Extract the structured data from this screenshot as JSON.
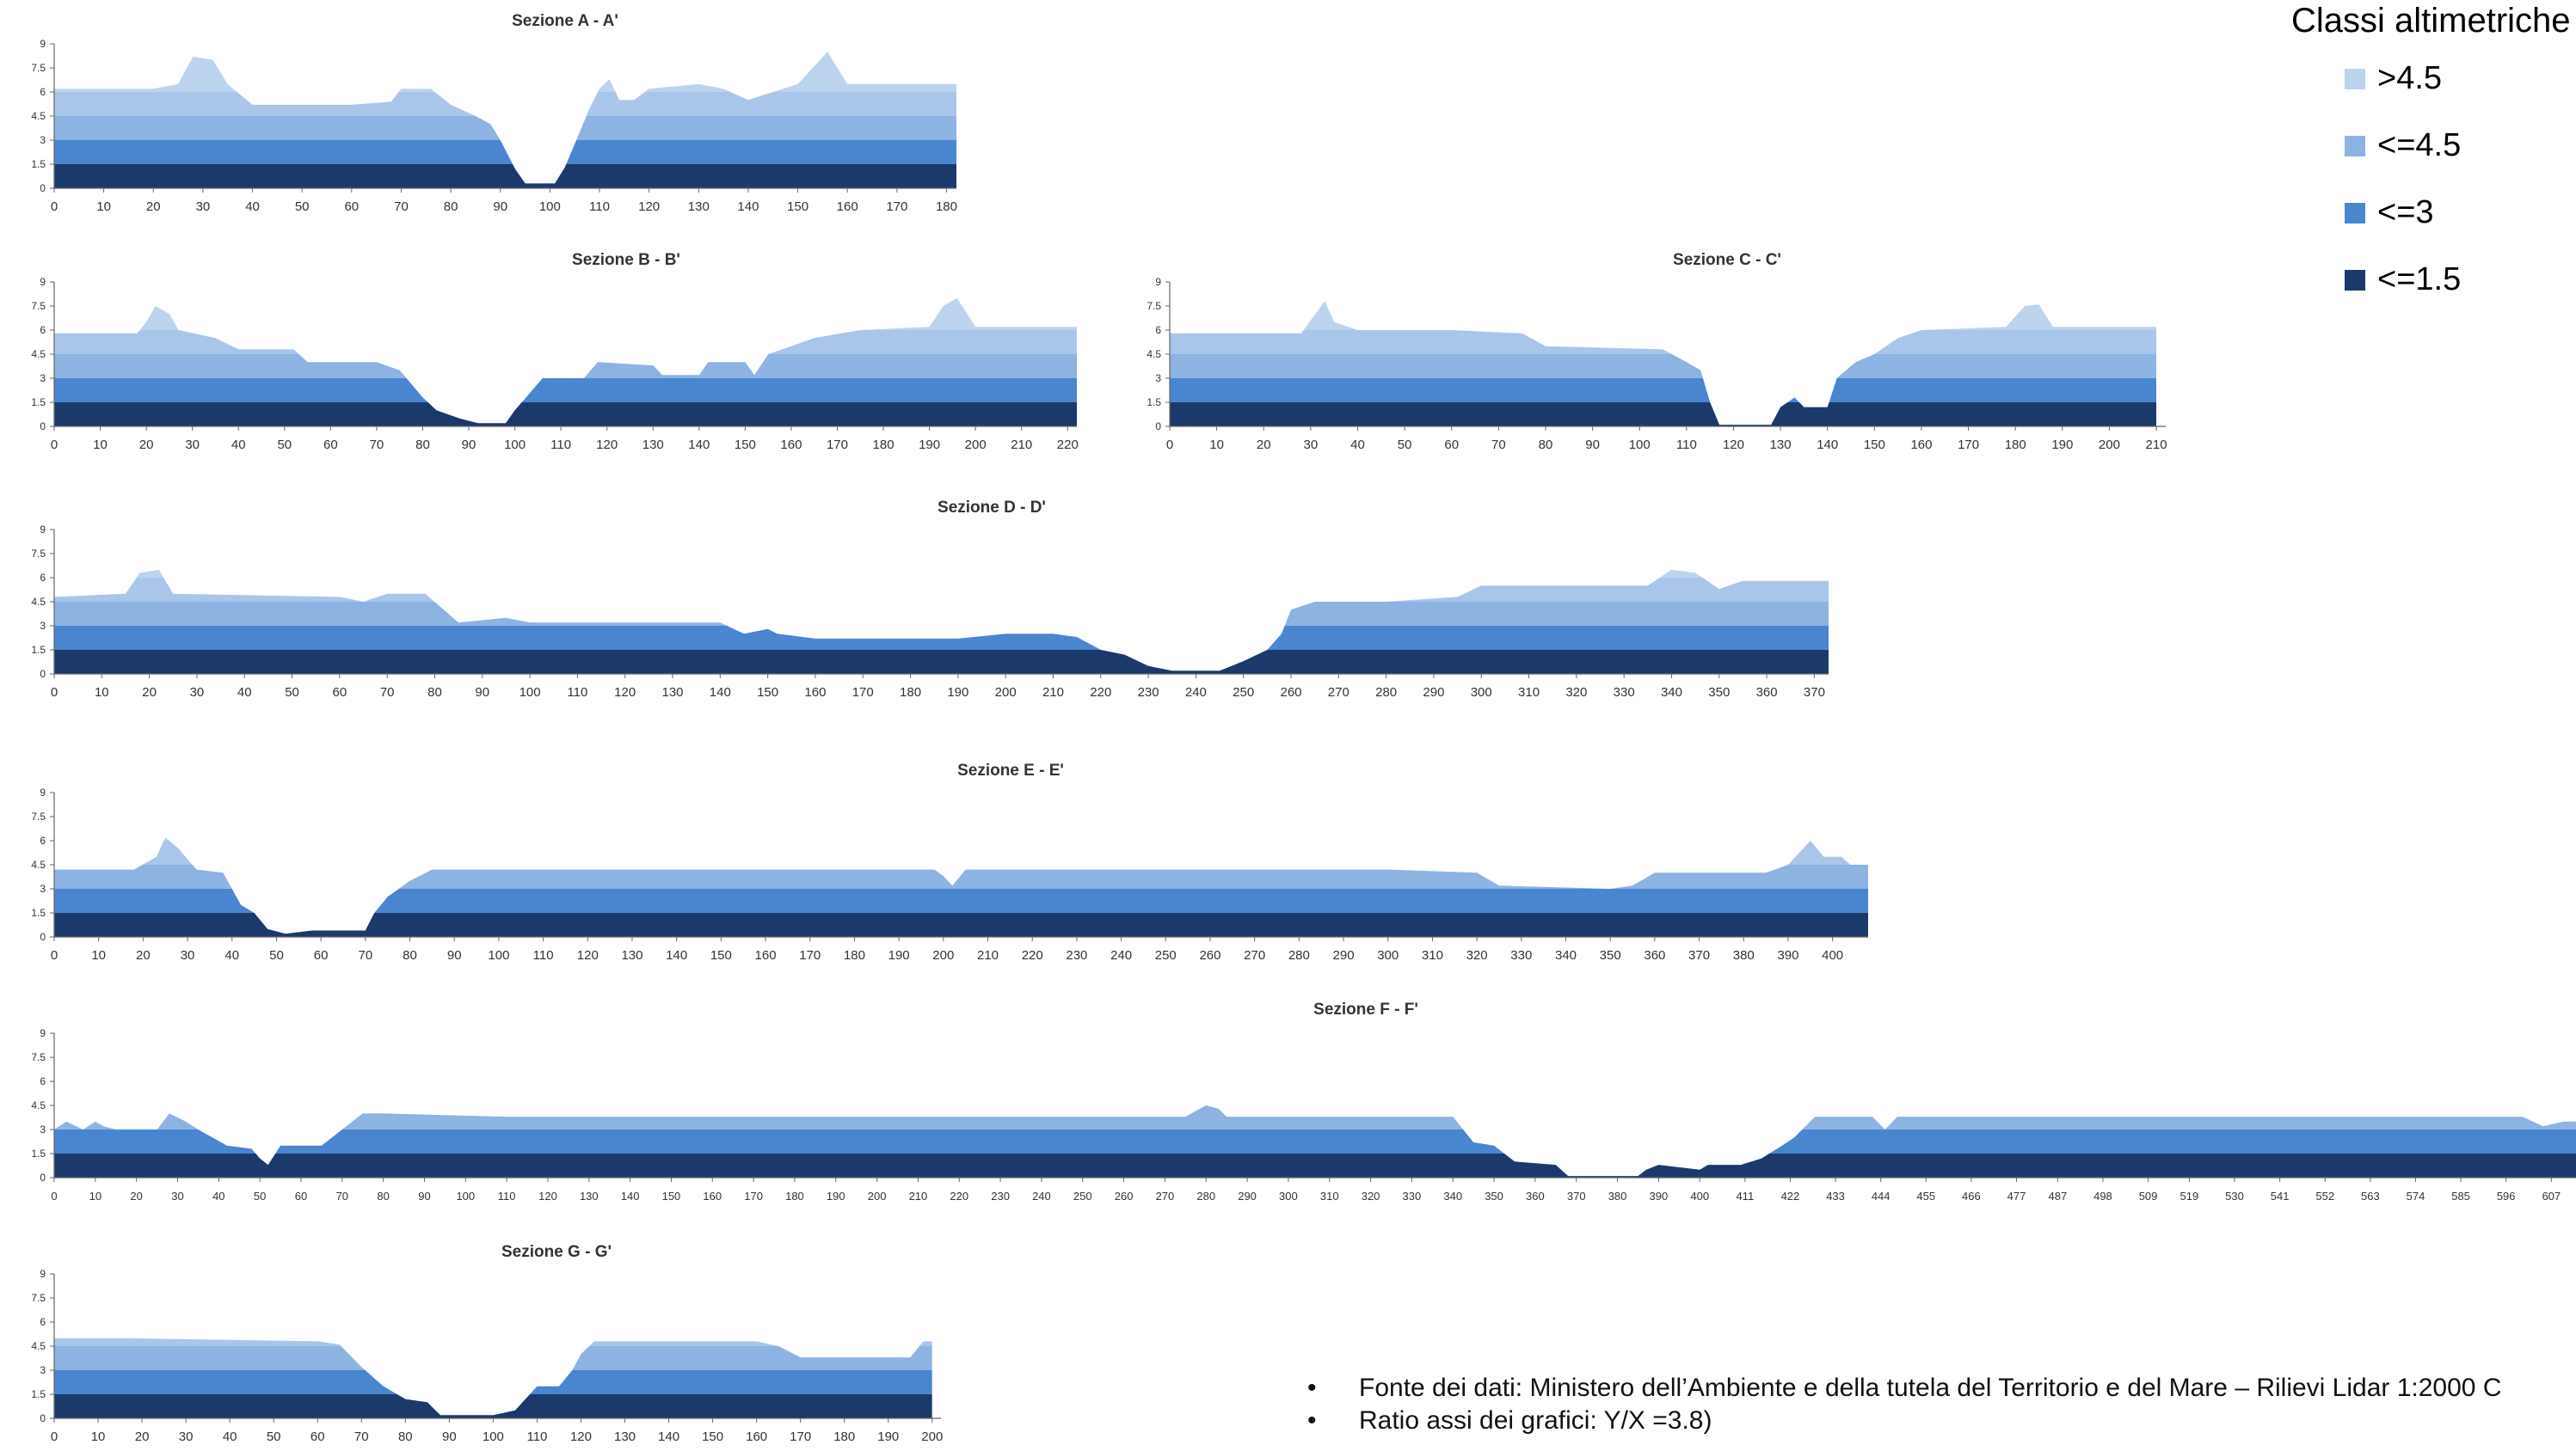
{
  "legend": {
    "title": "Classi altimetriche",
    "items": [
      {
        "label": ">4.5",
        "color": "#bcd3ee"
      },
      {
        "label": "<=4.5",
        "color": "#8db3e2"
      },
      {
        "label": "<=3",
        "color": "#4a86cf"
      },
      {
        "label": "<=1.5",
        "color": "#1b3a6b"
      }
    ]
  },
  "notes": [
    "Fonte dei dati: Ministero dell’Ambiente e della tutela  del Territorio e del Mare – Rilievi Lidar 1:2000 C",
    "Ratio assi dei grafici: Y/X  =3.8)"
  ],
  "chart_data": [
    {
      "type": "area",
      "title": "Sezione A - A'",
      "yticks": [
        "0",
        "1.5",
        "3",
        "4.5",
        "6",
        "7.5",
        "9"
      ],
      "ylim": [
        0,
        9
      ],
      "xlim": [
        0,
        182
      ],
      "xticks": [
        0,
        10,
        20,
        30,
        40,
        50,
        60,
        70,
        80,
        90,
        100,
        110,
        120,
        130,
        140,
        150,
        160,
        170,
        180
      ],
      "profile": [
        [
          0,
          6.2
        ],
        [
          20,
          6.2
        ],
        [
          25,
          6.5
        ],
        [
          28,
          8.2
        ],
        [
          32,
          8
        ],
        [
          35,
          6.5
        ],
        [
          40,
          5.2
        ],
        [
          50,
          5.2
        ],
        [
          60,
          5.2
        ],
        [
          68,
          5.4
        ],
        [
          70,
          6.2
        ],
        [
          76,
          6.2
        ],
        [
          80,
          5.2
        ],
        [
          85,
          4.5
        ],
        [
          88,
          4
        ],
        [
          90,
          3
        ],
        [
          93,
          1.2
        ],
        [
          95,
          0.3
        ],
        [
          101,
          0.3
        ],
        [
          103,
          1.3
        ],
        [
          106,
          3.5
        ],
        [
          108,
          5
        ],
        [
          110,
          6.2
        ],
        [
          112,
          6.8
        ],
        [
          114,
          5.5
        ],
        [
          117,
          5.5
        ],
        [
          120,
          6.2
        ],
        [
          130,
          6.5
        ],
        [
          135,
          6.2
        ],
        [
          140,
          5.5
        ],
        [
          145,
          6
        ],
        [
          150,
          6.5
        ],
        [
          153,
          7.5
        ],
        [
          156,
          8.5
        ],
        [
          160,
          6.5
        ],
        [
          165,
          6.5
        ],
        [
          182,
          6.5
        ]
      ]
    },
    {
      "type": "area",
      "title": "Sezione B - B'",
      "yticks": [
        "0",
        "1.5",
        "3",
        "4.5",
        "6",
        "7.5",
        "9"
      ],
      "ylim": [
        0,
        9
      ],
      "xlim": [
        0,
        222
      ],
      "xticks": [
        0,
        10,
        20,
        30,
        40,
        50,
        60,
        70,
        80,
        90,
        100,
        110,
        120,
        130,
        140,
        150,
        160,
        170,
        180,
        190,
        200,
        210,
        220
      ],
      "profile": [
        [
          0,
          5.8
        ],
        [
          18,
          5.8
        ],
        [
          20,
          6.5
        ],
        [
          22,
          7.5
        ],
        [
          25,
          7
        ],
        [
          27,
          6
        ],
        [
          35,
          5.5
        ],
        [
          40,
          4.8
        ],
        [
          52,
          4.8
        ],
        [
          55,
          4
        ],
        [
          70,
          4
        ],
        [
          75,
          3.5
        ],
        [
          80,
          1.8
        ],
        [
          83,
          1
        ],
        [
          88,
          0.5
        ],
        [
          92,
          0.2
        ],
        [
          98,
          0.2
        ],
        [
          100,
          1
        ],
        [
          103,
          2
        ],
        [
          106,
          3
        ],
        [
          115,
          3
        ],
        [
          118,
          4
        ],
        [
          130,
          3.8
        ],
        [
          132,
          3.2
        ],
        [
          140,
          3.2
        ],
        [
          142,
          4
        ],
        [
          150,
          4
        ],
        [
          152,
          3.2
        ],
        [
          155,
          4.5
        ],
        [
          160,
          5
        ],
        [
          165,
          5.5
        ],
        [
          175,
          6
        ],
        [
          190,
          6.2
        ],
        [
          193,
          7.5
        ],
        [
          196,
          8
        ],
        [
          200,
          6.2
        ],
        [
          222,
          6.2
        ]
      ]
    },
    {
      "type": "area",
      "title": "Sezione C - C'",
      "yticks": [
        "0",
        "1.5",
        "3",
        "4.5",
        "6",
        "7.5",
        "9"
      ],
      "ylim": [
        0,
        9
      ],
      "xlim": [
        0,
        212
      ],
      "xticks": [
        0,
        10,
        20,
        30,
        40,
        50,
        60,
        70,
        80,
        90,
        100,
        110,
        120,
        130,
        140,
        150,
        160,
        170,
        180,
        190,
        200,
        210
      ],
      "profile": [
        [
          0,
          5.8
        ],
        [
          28,
          5.8
        ],
        [
          31,
          7
        ],
        [
          33,
          7.8
        ],
        [
          35,
          6.5
        ],
        [
          40,
          6
        ],
        [
          60,
          6
        ],
        [
          75,
          5.8
        ],
        [
          80,
          5
        ],
        [
          105,
          4.8
        ],
        [
          110,
          4
        ],
        [
          113,
          3.5
        ],
        [
          115,
          1.5
        ],
        [
          117,
          0.1
        ],
        [
          128,
          0.1
        ],
        [
          130,
          1.2
        ],
        [
          133,
          1.8
        ],
        [
          135,
          1.2
        ],
        [
          140,
          1.2
        ],
        [
          142,
          3
        ],
        [
          146,
          4
        ],
        [
          150,
          4.5
        ],
        [
          155,
          5.5
        ],
        [
          160,
          6
        ],
        [
          178,
          6.2
        ],
        [
          182,
          7.5
        ],
        [
          185,
          7.6
        ],
        [
          188,
          6.2
        ],
        [
          210,
          6.2
        ]
      ]
    },
    {
      "type": "area",
      "title": "Sezione D - D'",
      "yticks": [
        "0",
        "1.5",
        "3",
        "4.5",
        "6",
        "7.5",
        "9"
      ],
      "ylim": [
        0,
        9
      ],
      "xlim": [
        0,
        373
      ],
      "xticks": [
        0,
        10,
        20,
        30,
        40,
        50,
        60,
        70,
        80,
        90,
        100,
        110,
        120,
        130,
        140,
        150,
        160,
        170,
        180,
        190,
        200,
        210,
        220,
        230,
        240,
        250,
        260,
        270,
        280,
        290,
        300,
        310,
        320,
        330,
        340,
        350,
        360,
        370
      ],
      "profile": [
        [
          0,
          4.8
        ],
        [
          15,
          5
        ],
        [
          18,
          6.3
        ],
        [
          22,
          6.5
        ],
        [
          25,
          5
        ],
        [
          60,
          4.8
        ],
        [
          65,
          4.5
        ],
        [
          70,
          5
        ],
        [
          78,
          5
        ],
        [
          85,
          3.2
        ],
        [
          95,
          3.5
        ],
        [
          100,
          3.2
        ],
        [
          140,
          3.2
        ],
        [
          145,
          2.5
        ],
        [
          150,
          2.8
        ],
        [
          152,
          2.5
        ],
        [
          160,
          2.2
        ],
        [
          190,
          2.2
        ],
        [
          200,
          2.5
        ],
        [
          210,
          2.5
        ],
        [
          215,
          2.3
        ],
        [
          220,
          1.5
        ],
        [
          225,
          1.2
        ],
        [
          230,
          0.5
        ],
        [
          235,
          0.2
        ],
        [
          245,
          0.2
        ],
        [
          250,
          0.8
        ],
        [
          255,
          1.5
        ],
        [
          258,
          2.5
        ],
        [
          260,
          4
        ],
        [
          265,
          4.5
        ],
        [
          280,
          4.5
        ],
        [
          295,
          4.8
        ],
        [
          300,
          5.5
        ],
        [
          335,
          5.5
        ],
        [
          340,
          6.5
        ],
        [
          345,
          6.3
        ],
        [
          350,
          5.3
        ],
        [
          355,
          5.8
        ],
        [
          373,
          5.8
        ]
      ]
    },
    {
      "type": "area",
      "title": "Sezione E - E'",
      "yticks": [
        "0",
        "1.5",
        "3",
        "4.5",
        "6",
        "7.5",
        "9"
      ],
      "ylim": [
        0,
        9
      ],
      "xlim": [
        0,
        408
      ],
      "xticks": [
        0,
        10,
        20,
        30,
        40,
        50,
        60,
        70,
        80,
        90,
        100,
        110,
        120,
        130,
        140,
        150,
        160,
        170,
        180,
        190,
        200,
        210,
        220,
        230,
        240,
        250,
        260,
        270,
        280,
        290,
        300,
        310,
        320,
        330,
        340,
        350,
        360,
        370,
        380,
        390,
        400
      ],
      "profile": [
        [
          0,
          4.2
        ],
        [
          18,
          4.2
        ],
        [
          23,
          5
        ],
        [
          25,
          6.2
        ],
        [
          28,
          5.5
        ],
        [
          32,
          4.2
        ],
        [
          38,
          4
        ],
        [
          42,
          2
        ],
        [
          45,
          1.5
        ],
        [
          48,
          0.5
        ],
        [
          52,
          0.2
        ],
        [
          58,
          0.4
        ],
        [
          70,
          0.4
        ],
        [
          72,
          1.5
        ],
        [
          75,
          2.5
        ],
        [
          80,
          3.5
        ],
        [
          85,
          4.2
        ],
        [
          198,
          4.2
        ],
        [
          200,
          3.8
        ],
        [
          202,
          3.2
        ],
        [
          205,
          4.2
        ],
        [
          240,
          4.2
        ],
        [
          300,
          4.2
        ],
        [
          320,
          4
        ],
        [
          325,
          3.2
        ],
        [
          350,
          3
        ],
        [
          355,
          3.2
        ],
        [
          360,
          4
        ],
        [
          385,
          4
        ],
        [
          390,
          4.5
        ],
        [
          395,
          6
        ],
        [
          398,
          5
        ],
        [
          402,
          5
        ],
        [
          404,
          4.5
        ],
        [
          408,
          4.5
        ]
      ]
    },
    {
      "type": "area",
      "title": "Sezione F - F'",
      "yticks": [
        "0",
        "1.5",
        "3",
        "4.5",
        "6",
        "7.5",
        "9"
      ],
      "ylim": [
        0,
        9
      ],
      "xlim": [
        0,
        613
      ],
      "xticks": [
        0,
        10,
        20,
        30,
        40,
        50,
        60,
        70,
        80,
        90,
        100,
        110,
        120,
        130,
        140,
        150,
        160,
        170,
        180,
        190,
        200,
        210,
        220,
        230,
        240,
        250,
        260,
        270,
        280,
        290,
        300,
        310,
        320,
        330,
        340,
        350,
        360,
        370,
        380,
        390,
        400,
        411,
        422,
        433,
        444,
        455,
        466,
        477,
        487,
        498,
        509,
        519,
        530,
        541,
        552,
        563,
        574,
        585,
        596,
        607
      ],
      "profile": [
        [
          0,
          3
        ],
        [
          3,
          3.5
        ],
        [
          7,
          3
        ],
        [
          10,
          3.5
        ],
        [
          12,
          3.2
        ],
        [
          15,
          3
        ],
        [
          25,
          3
        ],
        [
          28,
          4
        ],
        [
          32,
          3.5
        ],
        [
          35,
          3
        ],
        [
          42,
          2
        ],
        [
          48,
          1.8
        ],
        [
          50,
          1.2
        ],
        [
          52,
          0.8
        ],
        [
          55,
          2
        ],
        [
          65,
          2
        ],
        [
          70,
          3
        ],
        [
          75,
          4
        ],
        [
          80,
          4
        ],
        [
          110,
          3.8
        ],
        [
          250,
          3.8
        ],
        [
          275,
          3.8
        ],
        [
          280,
          4.5
        ],
        [
          283,
          4.3
        ],
        [
          285,
          3.8
        ],
        [
          335,
          3.8
        ],
        [
          340,
          3.8
        ],
        [
          345,
          2.2
        ],
        [
          350,
          2
        ],
        [
          355,
          1
        ],
        [
          365,
          0.8
        ],
        [
          368,
          0.1
        ],
        [
          385,
          0.1
        ],
        [
          387,
          0.5
        ],
        [
          390,
          0.8
        ],
        [
          400,
          0.5
        ],
        [
          402,
          0.8
        ],
        [
          410,
          0.8
        ],
        [
          415,
          1.2
        ],
        [
          420,
          2
        ],
        [
          423,
          2.5
        ],
        [
          428,
          3.8
        ],
        [
          442,
          3.8
        ],
        [
          445,
          3
        ],
        [
          448,
          3.8
        ],
        [
          600,
          3.8
        ],
        [
          605,
          3.2
        ],
        [
          610,
          3.5
        ],
        [
          613,
          3.5
        ]
      ]
    },
    {
      "type": "area",
      "title": "Sezione G - G'",
      "yticks": [
        "0",
        "1.5",
        "3",
        "4.5",
        "6",
        "7.5",
        "9"
      ],
      "ylim": [
        0,
        9
      ],
      "xlim": [
        0,
        202
      ],
      "xticks": [
        0,
        10,
        20,
        30,
        40,
        50,
        60,
        70,
        80,
        90,
        100,
        110,
        120,
        130,
        140,
        150,
        160,
        170,
        180,
        190,
        200
      ],
      "profile": [
        [
          0,
          5
        ],
        [
          10,
          5
        ],
        [
          15,
          5
        ],
        [
          60,
          4.8
        ],
        [
          65,
          4.6
        ],
        [
          70,
          3.2
        ],
        [
          75,
          2
        ],
        [
          80,
          1.2
        ],
        [
          85,
          1
        ],
        [
          88,
          0.2
        ],
        [
          100,
          0.2
        ],
        [
          105,
          0.5
        ],
        [
          110,
          2
        ],
        [
          115,
          2
        ],
        [
          118,
          3
        ],
        [
          120,
          4
        ],
        [
          123,
          4.8
        ],
        [
          160,
          4.8
        ],
        [
          165,
          4.5
        ],
        [
          170,
          3.8
        ],
        [
          195,
          3.8
        ],
        [
          198,
          4.8
        ],
        [
          200,
          4.8
        ]
      ]
    }
  ]
}
